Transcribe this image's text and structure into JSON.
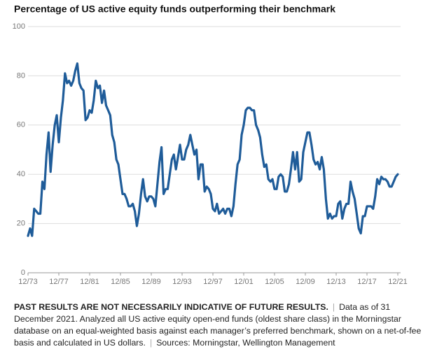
{
  "chart_data": {
    "type": "line",
    "title": "Percentage of US active equity funds outperforming their benchmark",
    "color": "#1f5c99",
    "grid": true,
    "xlim": [
      1974,
      2022
    ],
    "xticks": [
      {
        "value": 1974,
        "label": "12/73"
      },
      {
        "value": 1978,
        "label": "12/77"
      },
      {
        "value": 1982,
        "label": "12/81"
      },
      {
        "value": 1986,
        "label": "12/85"
      },
      {
        "value": 1990,
        "label": "12/89"
      },
      {
        "value": 1994,
        "label": "12/93"
      },
      {
        "value": 1998,
        "label": "12/97"
      },
      {
        "value": 2002,
        "label": "12/01"
      },
      {
        "value": 2006,
        "label": "12/05"
      },
      {
        "value": 2010,
        "label": "12/09"
      },
      {
        "value": 2014,
        "label": "12/13"
      },
      {
        "value": 2018,
        "label": "12/17"
      },
      {
        "value": 2022,
        "label": "12/21"
      }
    ],
    "ylim": [
      0,
      100
    ],
    "yticks": [
      0,
      20,
      40,
      60,
      80,
      100
    ],
    "x": [
      1974,
      1974.27,
      1974.53,
      1974.8,
      1975.07,
      1975.33,
      1975.6,
      1975.87,
      1976.13,
      1976.4,
      1976.67,
      1976.93,
      1977.2,
      1977.47,
      1977.73,
      1978,
      1978.27,
      1978.53,
      1978.8,
      1979.07,
      1979.33,
      1979.6,
      1979.87,
      1980.13,
      1980.4,
      1980.67,
      1980.93,
      1981.2,
      1981.47,
      1981.73,
      1982,
      1982.27,
      1982.53,
      1982.8,
      1983.07,
      1983.33,
      1983.6,
      1983.87,
      1984.13,
      1984.4,
      1984.67,
      1984.93,
      1985.2,
      1985.47,
      1985.73,
      1986,
      1986.27,
      1986.53,
      1986.8,
      1987.07,
      1987.33,
      1987.6,
      1987.87,
      1988.13,
      1988.4,
      1988.67,
      1988.93,
      1989.2,
      1989.47,
      1989.73,
      1990,
      1990.27,
      1990.53,
      1990.8,
      1991.07,
      1991.33,
      1991.6,
      1991.87,
      1992.13,
      1992.4,
      1992.67,
      1992.93,
      1993.2,
      1993.47,
      1993.73,
      1994,
      1994.27,
      1994.53,
      1994.8,
      1995.07,
      1995.33,
      1995.6,
      1995.87,
      1996.13,
      1996.4,
      1996.67,
      1996.93,
      1997.2,
      1997.47,
      1997.73,
      1998,
      1998.27,
      1998.53,
      1998.8,
      1999.07,
      1999.33,
      1999.6,
      1999.87,
      2000.13,
      2000.4,
      2000.67,
      2000.93,
      2001.2,
      2001.47,
      2001.73,
      2002,
      2002.27,
      2002.53,
      2002.8,
      2003.07,
      2003.33,
      2003.6,
      2003.87,
      2004.13,
      2004.4,
      2004.67,
      2004.93,
      2005.2,
      2005.47,
      2005.73,
      2006,
      2006.27,
      2006.53,
      2006.8,
      2007.07,
      2007.33,
      2007.6,
      2007.87,
      2008.13,
      2008.4,
      2008.67,
      2008.93,
      2009.2,
      2009.47,
      2009.73,
      2010,
      2010.27,
      2010.53,
      2010.8,
      2011.07,
      2011.33,
      2011.6,
      2011.87,
      2012.13,
      2012.4,
      2012.67,
      2012.93,
      2013.2,
      2013.47,
      2013.73,
      2014,
      2014.27,
      2014.53,
      2014.8,
      2015.07,
      2015.33,
      2015.6,
      2015.87,
      2016.13,
      2016.4,
      2016.67,
      2016.93,
      2017.2,
      2017.47,
      2017.73,
      2018,
      2018.27,
      2018.53,
      2018.8,
      2019.07,
      2019.33,
      2019.6,
      2019.87,
      2020.13,
      2020.4,
      2020.67,
      2020.93,
      2021.2,
      2021.47,
      2021.73,
      2022
    ],
    "values": [
      15,
      18,
      15,
      26,
      25,
      24,
      24,
      37,
      34,
      48,
      57,
      41,
      52,
      60,
      64,
      53,
      63,
      70,
      81,
      77,
      78,
      76,
      78,
      82,
      85,
      77,
      75,
      74,
      62,
      63,
      66,
      65,
      70,
      78,
      75,
      76,
      69,
      74,
      68,
      66,
      64,
      56,
      53,
      46,
      44,
      38,
      32,
      32,
      30,
      27,
      27,
      28,
      25,
      19,
      24,
      32,
      38,
      31,
      29,
      31,
      31,
      30,
      27,
      36,
      45,
      51,
      32,
      34,
      34,
      40,
      46,
      48,
      42,
      47,
      52,
      46,
      46,
      50,
      52,
      56,
      52,
      48,
      50,
      38,
      44,
      44,
      33,
      35,
      34,
      32,
      26,
      25,
      28,
      24,
      25,
      26,
      24,
      26,
      26,
      23,
      27,
      36,
      44,
      46,
      56,
      60,
      66,
      67,
      67,
      66,
      66,
      60,
      58,
      55,
      48,
      43,
      44,
      38,
      37,
      38,
      34,
      34,
      39,
      40,
      39,
      33,
      33,
      36,
      42,
      49,
      42,
      49,
      37,
      38,
      49,
      53,
      57,
      57,
      52,
      46,
      44,
      45,
      42,
      47,
      42,
      30,
      22,
      24,
      22,
      23,
      23,
      28,
      29,
      22,
      26,
      28,
      28,
      37,
      33,
      30,
      24,
      18,
      16,
      23,
      23,
      27,
      27,
      27,
      26,
      31,
      38,
      36,
      39,
      38,
      38,
      37,
      35,
      35,
      37,
      39,
      40
    ]
  },
  "footer": {
    "disclaimer": "PAST RESULTS ARE NOT NECESSARILY INDICATIVE OF FUTURE RESULTS.",
    "note": "Data as of 31 December 2021. Analyzed all US active equity open-end funds (oldest share class) in the Morningstar database on an equal-weighted basis against each manager’s preferred benchmark, shown on a net-of-fee basis and calculated in US dollars.",
    "sources": "Sources: Morningstar, Wellington Management"
  }
}
